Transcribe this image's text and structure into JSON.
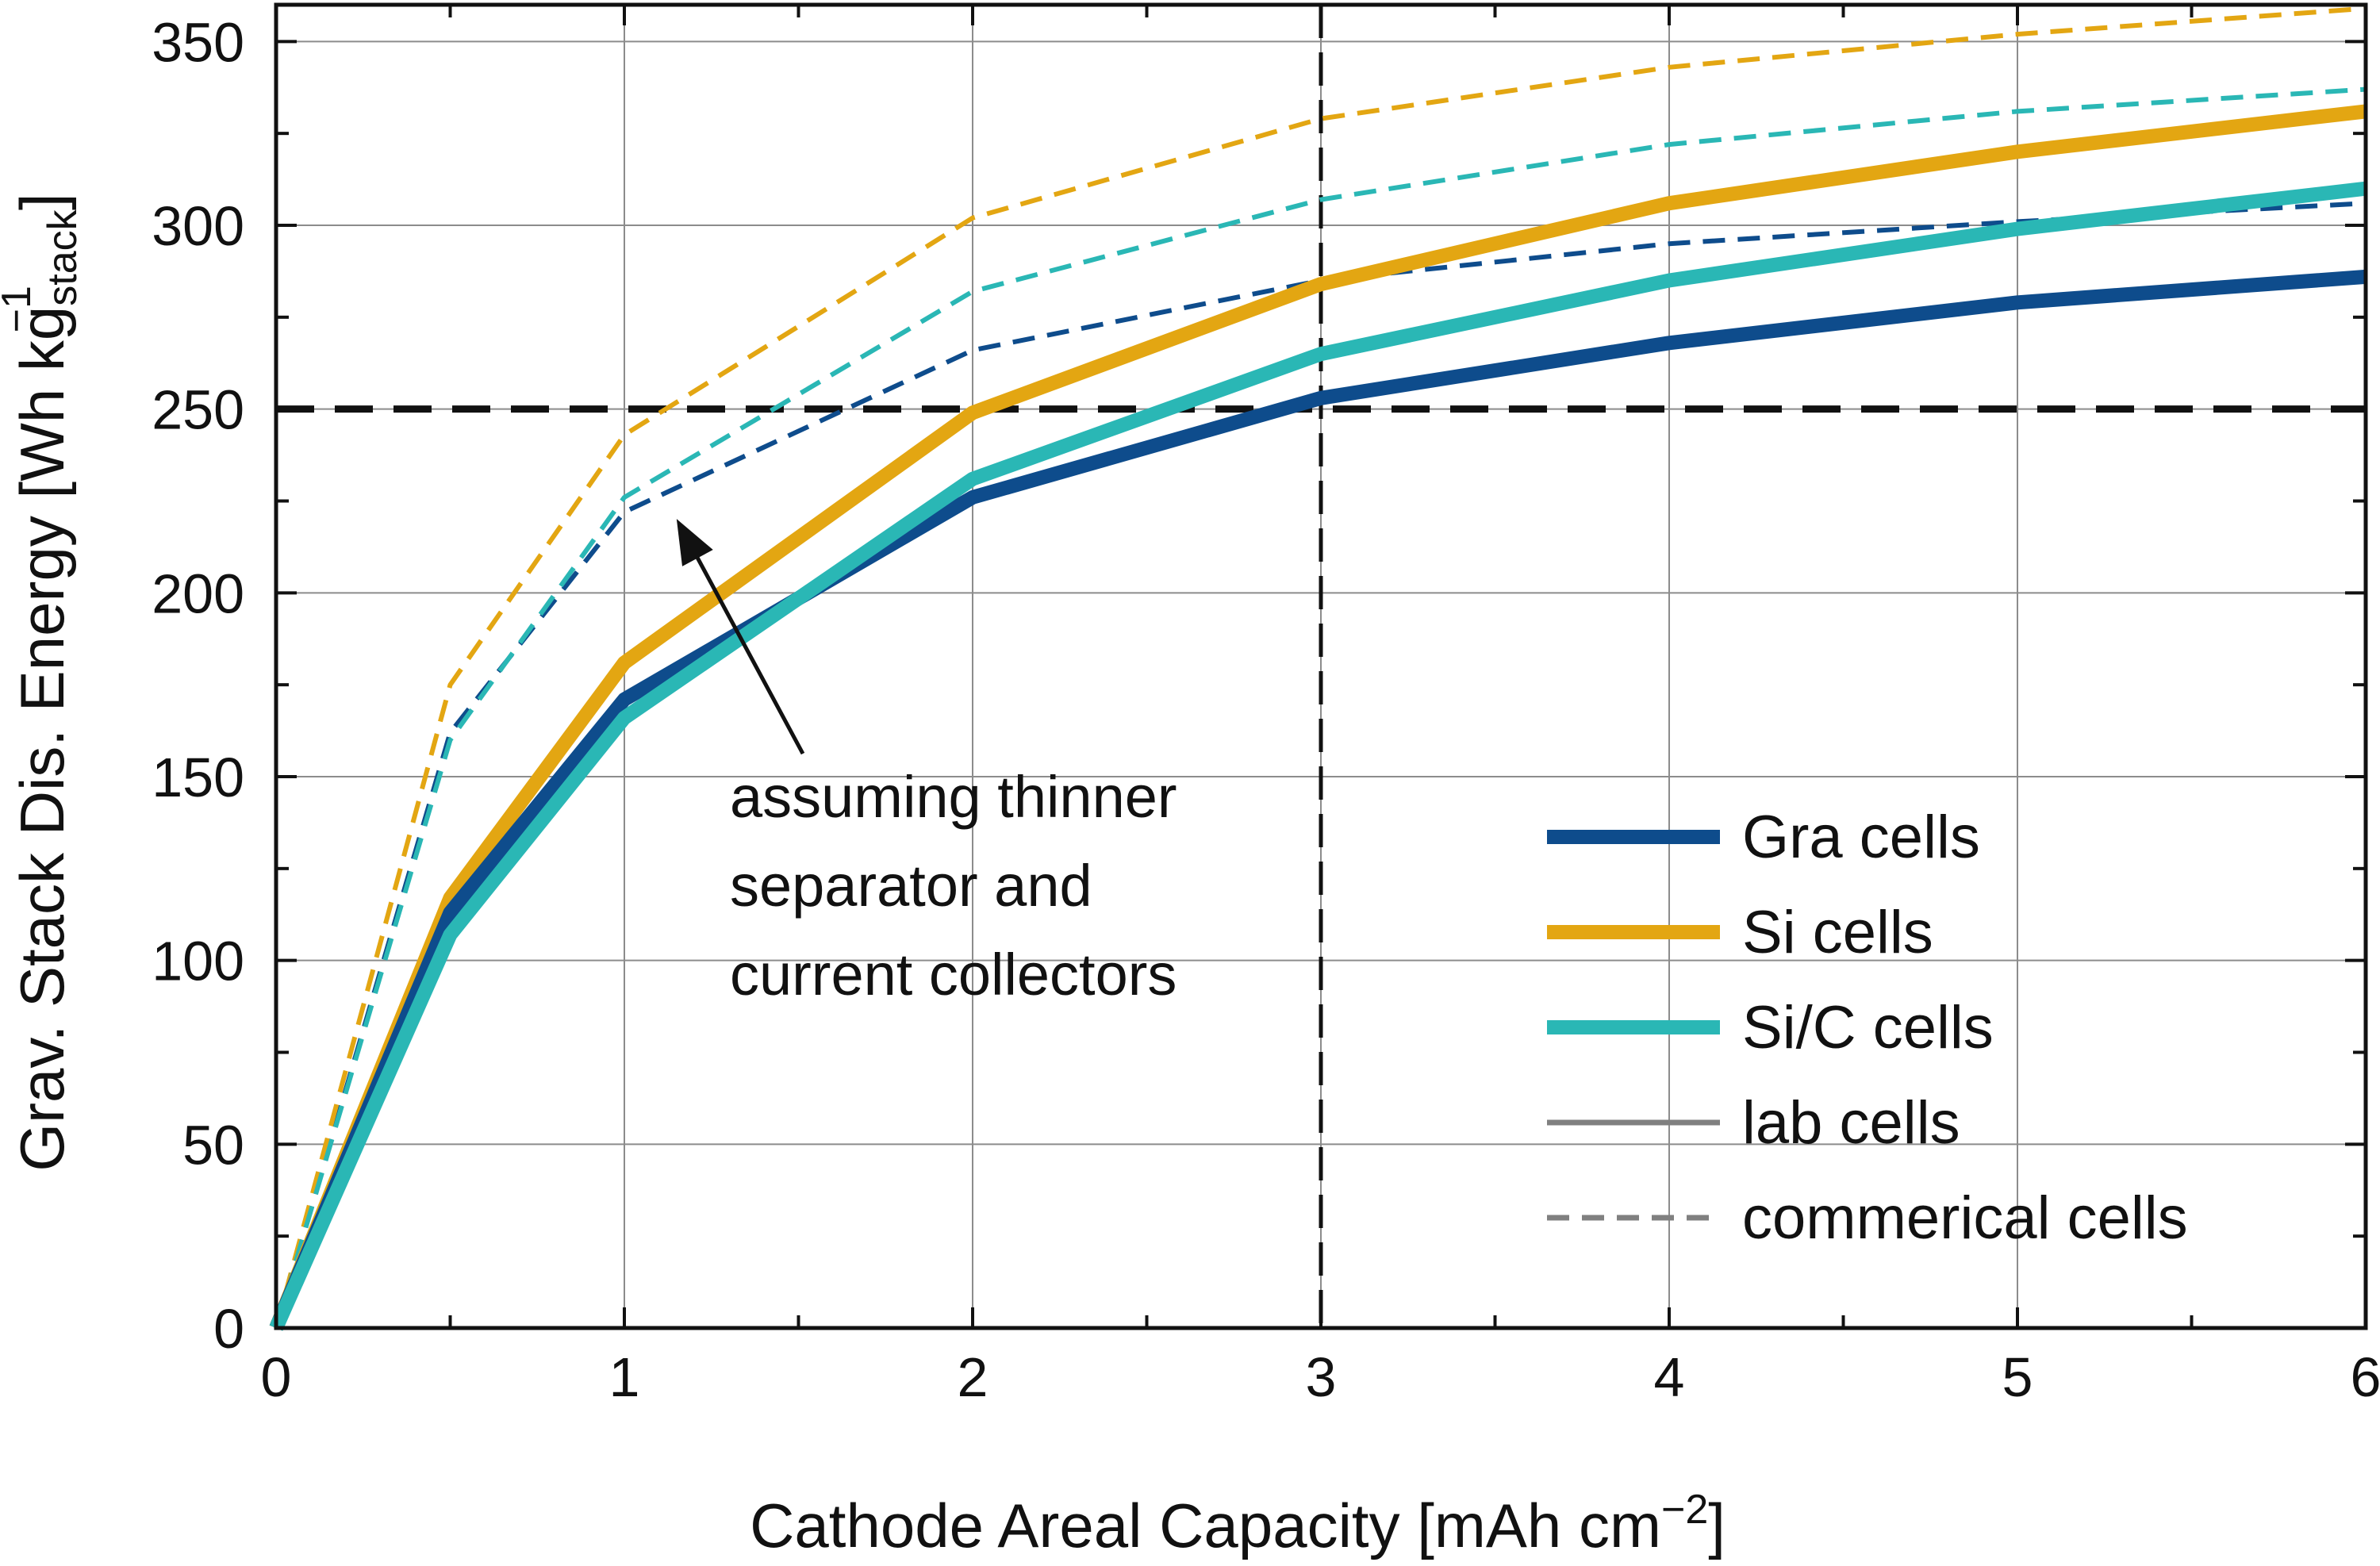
{
  "chart_data": {
    "type": "line",
    "title": "",
    "xlabel": "Cathode Areal Capacity [mAh cm",
    "xlabel_sup": "−2",
    "xlabel_end": "]",
    "ylabel": "Grav. Stack Dis. Energy [Wh kg",
    "ylabel_sub": "stack",
    "ylabel_sup": "−1",
    "ylabel_end": "]",
    "xlim": [
      0,
      6
    ],
    "ylim": [
      0,
      360
    ],
    "xticks": [
      0,
      1,
      2,
      3,
      4,
      5,
      6
    ],
    "yticks": [
      0,
      50,
      100,
      150,
      200,
      250,
      300,
      350
    ],
    "grid": true,
    "reference_lines": {
      "x": 3,
      "y": 250
    },
    "series": [
      {
        "name": "Gra cells",
        "kind": "lab",
        "color": "#0e4c8c",
        "x": [
          0,
          0.5,
          1,
          2,
          3,
          4,
          5,
          6
        ],
        "y": [
          0,
          113,
          171,
          226,
          253,
          268,
          279,
          286
        ]
      },
      {
        "name": "Si cells",
        "kind": "lab",
        "color": "#e3a612",
        "x": [
          0,
          0.5,
          1,
          2,
          3,
          4,
          5,
          6
        ],
        "y": [
          0,
          117,
          181,
          249,
          284,
          306,
          320,
          331
        ]
      },
      {
        "name": "Si/C cells",
        "kind": "lab",
        "color": "#2ab7b5",
        "x": [
          0,
          0.5,
          1,
          2,
          3,
          4,
          5,
          6
        ],
        "y": [
          0,
          107,
          166,
          231,
          265,
          285,
          299,
          310
        ]
      },
      {
        "name": "Gra cells",
        "kind": "commercial",
        "color": "#0e4c8c",
        "x": [
          0,
          0.5,
          1,
          2,
          3,
          4,
          5,
          6
        ],
        "y": [
          0,
          162,
          222,
          266,
          285,
          295,
          301,
          306
        ]
      },
      {
        "name": "Si cells",
        "kind": "commercial",
        "color": "#e3a612",
        "x": [
          0,
          0.5,
          1,
          2,
          3,
          4,
          5,
          6
        ],
        "y": [
          0,
          175,
          243,
          302,
          329,
          343,
          352,
          359
        ]
      },
      {
        "name": "Si/C cells",
        "kind": "commercial",
        "color": "#2ab7b5",
        "x": [
          0,
          0.5,
          1,
          2,
          3,
          4,
          5,
          6
        ],
        "y": [
          0,
          160,
          226,
          282,
          307,
          322,
          331,
          337
        ]
      }
    ],
    "legend": {
      "placement": "bottom-right",
      "entries": [
        {
          "label": "Gra cells",
          "color": "#0e4c8c",
          "style": "solid-thick"
        },
        {
          "label": "Si cells",
          "color": "#e3a612",
          "style": "solid-thick"
        },
        {
          "label": "Si/C cells",
          "color": "#2ab7b5",
          "style": "solid-thick"
        },
        {
          "label": "lab cells",
          "color": "#808080",
          "style": "solid"
        },
        {
          "label": "commerical cells",
          "color": "#808080",
          "style": "dashed"
        }
      ]
    },
    "annotation": {
      "lines": [
        "assuming thinner",
        "separator and",
        "current collectors"
      ],
      "arrow_target": {
        "x": 1.15,
        "y": 224
      }
    }
  }
}
